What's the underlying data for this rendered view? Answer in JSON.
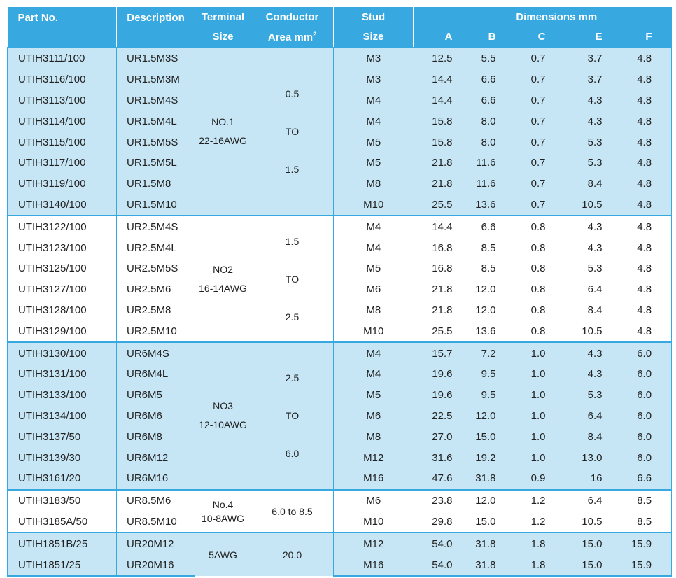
{
  "headers": {
    "part_no": "Part No.",
    "description": "Description",
    "terminal_line1": "Terminal",
    "terminal_line2": "Size",
    "conductor_line1": "Conductor",
    "conductor_line2": "Area mm",
    "conductor_sup": "2",
    "stud_line1": "Stud",
    "stud_line2": "Size",
    "dimensions": "Dimensions mm",
    "dim_cols": [
      "A",
      "B",
      "C",
      "E",
      "F"
    ]
  },
  "groups": [
    {
      "shade": "blue",
      "terminal": [
        "NO.1",
        "22-16AWG"
      ],
      "conductor": [
        "0.5",
        "TO",
        "1.5"
      ],
      "rows": [
        {
          "part": "UTIH3111/100",
          "desc": "UR1.5M3S",
          "stud": "M3",
          "a": "12.5",
          "b": "5.5",
          "c": "0.7",
          "e": "3.7",
          "f": "4.8"
        },
        {
          "part": "UTIH3116/100",
          "desc": "UR1.5M3M",
          "stud": "M3",
          "a": "14.4",
          "b": "6.6",
          "c": "0.7",
          "e": "3.7",
          "f": "4.8"
        },
        {
          "part": "UTIH3113/100",
          "desc": "UR1.5M4S",
          "stud": "M4",
          "a": "14.4",
          "b": "6.6",
          "c": "0.7",
          "e": "4.3",
          "f": "4.8"
        },
        {
          "part": "UTIH3114/100",
          "desc": "UR1.5M4L",
          "stud": "M4",
          "a": "15.8",
          "b": "8.0",
          "c": "0.7",
          "e": "4.3",
          "f": "4.8"
        },
        {
          "part": "UTIH3115/100",
          "desc": "UR1.5M5S",
          "stud": "M5",
          "a": "15.8",
          "b": "8.0",
          "c": "0.7",
          "e": "5.3",
          "f": "4.8"
        },
        {
          "part": "UTIH3117/100",
          "desc": "UR1.5M5L",
          "stud": "M5",
          "a": "21.8",
          "b": "11.6",
          "c": "0.7",
          "e": "5.3",
          "f": "4.8"
        },
        {
          "part": "UTIH3119/100",
          "desc": "UR1.5M8",
          "stud": "M8",
          "a": "21.8",
          "b": "11.6",
          "c": "0.7",
          "e": "8.4",
          "f": "4.8"
        },
        {
          "part": "UTIH3140/100",
          "desc": "UR1.5M10",
          "stud": "M10",
          "a": "25.5",
          "b": "13.6",
          "c": "0.7",
          "e": "10.5",
          "f": "4.8"
        }
      ]
    },
    {
      "shade": "white",
      "terminal": [
        "NO2",
        "16-14AWG"
      ],
      "conductor": [
        "1.5",
        "TO",
        "2.5"
      ],
      "rows": [
        {
          "part": "UTIH3122/100",
          "desc": "UR2.5M4S",
          "stud": "M4",
          "a": "14.4",
          "b": "6.6",
          "c": "0.8",
          "e": "4.3",
          "f": "4.8"
        },
        {
          "part": "UTIH3123/100",
          "desc": "UR2.5M4L",
          "stud": "M4",
          "a": "16.8",
          "b": "8.5",
          "c": "0.8",
          "e": "4.3",
          "f": "4.8"
        },
        {
          "part": "UTIH3125/100",
          "desc": "UR2.5M5S",
          "stud": "M5",
          "a": "16.8",
          "b": "8.5",
          "c": "0.8",
          "e": "5.3",
          "f": "4.8"
        },
        {
          "part": "UTIH3127/100",
          "desc": "UR2.5M6",
          "stud": "M6",
          "a": "21.8",
          "b": "12.0",
          "c": "0.8",
          "e": "6.4",
          "f": "4.8"
        },
        {
          "part": "UTIH3128/100",
          "desc": "UR2.5M8",
          "stud": "M8",
          "a": "21.8",
          "b": "12.0",
          "c": "0.8",
          "e": "8.4",
          "f": "4.8"
        },
        {
          "part": "UTIH3129/100",
          "desc": "UR2.5M10",
          "stud": "M10",
          "a": "25.5",
          "b": "13.6",
          "c": "0.8",
          "e": "10.5",
          "f": "4.8"
        }
      ]
    },
    {
      "shade": "blue",
      "terminal": [
        "NO3",
        "12-10AWG"
      ],
      "conductor": [
        "2.5",
        "TO",
        "6.0"
      ],
      "rows": [
        {
          "part": "UTIH3130/100",
          "desc": "UR6M4S",
          "stud": "M4",
          "a": "15.7",
          "b": "7.2",
          "c": "1.0",
          "e": "4.3",
          "f": "6.0"
        },
        {
          "part": "UTIH3131/100",
          "desc": "UR6M4L",
          "stud": "M4",
          "a": "19.6",
          "b": "9.5",
          "c": "1.0",
          "e": "4.3",
          "f": "6.0"
        },
        {
          "part": "UTIH3133/100",
          "desc": "UR6M5",
          "stud": "M5",
          "a": "19.6",
          "b": "9.5",
          "c": "1.0",
          "e": "5.3",
          "f": "6.0"
        },
        {
          "part": "UTIH3134/100",
          "desc": "UR6M6",
          "stud": "M6",
          "a": "22.5",
          "b": "12.0",
          "c": "1.0",
          "e": "6.4",
          "f": "6.0"
        },
        {
          "part": "UTIH3137/50",
          "desc": "UR6M8",
          "stud": "M8",
          "a": "27.0",
          "b": "15.0",
          "c": "1.0",
          "e": "8.4",
          "f": "6.0"
        },
        {
          "part": "UTIH3139/30",
          "desc": "UR6M12",
          "stud": "M12",
          "a": "31.6",
          "b": "19.2",
          "c": "1.0",
          "e": "13.0",
          "f": "6.0"
        },
        {
          "part": "UTIH3161/20",
          "desc": "UR6M16",
          "stud": "M16",
          "a": "47.6",
          "b": "31.8",
          "c": "0.9",
          "e": "16",
          "f": "6.6"
        }
      ]
    },
    {
      "shade": "white",
      "terminal": [
        "No.4",
        "10-8AWG"
      ],
      "conductor": [
        "6.0 to 8.5"
      ],
      "rows": [
        {
          "part": "UTIH3183/50",
          "desc": "UR8.5M6",
          "stud": "M6",
          "a": "23.8",
          "b": "12.0",
          "c": "1.2",
          "e": "6.4",
          "f": "8.5"
        },
        {
          "part": "UTIH3185A/50",
          "desc": "UR8.5M10",
          "stud": "M10",
          "a": "29.8",
          "b": "15.0",
          "c": "1.2",
          "e": "10.5",
          "f": "8.5"
        }
      ]
    },
    {
      "shade": "blue",
      "terminal": [
        "5AWG"
      ],
      "conductor": [
        "20.0"
      ],
      "rows": [
        {
          "part": "UTIH1851B/25",
          "desc": "UR20M12",
          "stud": "M12",
          "a": "54.0",
          "b": "31.8",
          "c": "1.8",
          "e": "15.0",
          "f": "15.9"
        },
        {
          "part": "UTIH1851/25",
          "desc": "UR20M16",
          "stud": "M16",
          "a": "54.0",
          "b": "31.8",
          "c": "1.8",
          "e": "15.0",
          "f": "15.9"
        }
      ]
    }
  ],
  "colors": {
    "header_bg": "#37a9e0",
    "blue_row_bg": "#c7e6f5",
    "white_row_bg": "#ffffff",
    "text": "#222222"
  }
}
